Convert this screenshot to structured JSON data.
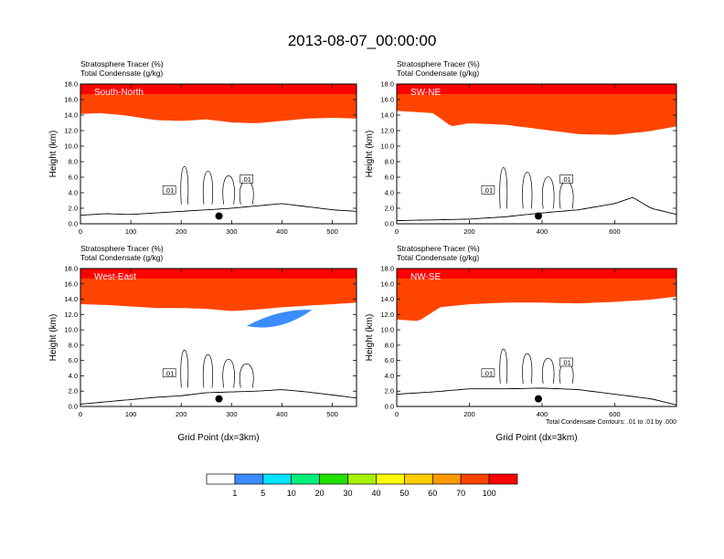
{
  "title": "2013-08-07_00:00:00",
  "chart_data": [
    {
      "type": "heatmap",
      "panel": "South-North",
      "left_strings": [
        "Stratosphere Tracer   (%)",
        "Total Condensate   (g/kg)"
      ],
      "ylabel": "Height (km)",
      "xlabel": "",
      "xlim": [
        0,
        548
      ],
      "ylim": [
        0,
        18
      ],
      "xticks": [
        0,
        100,
        200,
        300,
        400,
        500
      ],
      "yticks": [
        "0.0",
        "2.0",
        "4.0",
        "6.0",
        "8.0",
        "10.0",
        "12.0",
        "14.0",
        "16.0",
        "18.0"
      ],
      "contour_labels": [
        ".01",
        ".01"
      ],
      "marker_x": 275,
      "tropopause": [
        [
          0,
          14.2
        ],
        [
          40,
          14.3
        ],
        [
          90,
          14.0
        ],
        [
          150,
          13.4
        ],
        [
          200,
          13.3
        ],
        [
          250,
          13.5
        ],
        [
          300,
          13.1
        ],
        [
          350,
          13.0
        ],
        [
          400,
          13.3
        ],
        [
          450,
          13.6
        ],
        [
          500,
          13.7
        ],
        [
          548,
          13.6
        ]
      ],
      "terrain": [
        [
          0,
          1.1
        ],
        [
          50,
          1.3
        ],
        [
          100,
          1.2
        ],
        [
          150,
          1.4
        ],
        [
          200,
          1.6
        ],
        [
          250,
          1.8
        ],
        [
          300,
          2.0
        ],
        [
          350,
          2.3
        ],
        [
          400,
          2.6
        ],
        [
          450,
          2.2
        ],
        [
          500,
          1.8
        ],
        [
          548,
          1.6
        ]
      ],
      "blob": null
    },
    {
      "type": "heatmap",
      "panel": "SW-NE",
      "left_strings": [
        "Stratosphere Tracer   (%)",
        "Total Condensate   (g/kg)"
      ],
      "ylabel": "Height (km)",
      "xlabel": "",
      "xlim": [
        0,
        770
      ],
      "ylim": [
        0,
        18
      ],
      "xticks": [
        0,
        200,
        400,
        600
      ],
      "yticks": [
        "0.0",
        "2.0",
        "4.0",
        "6.0",
        "8.0",
        "10.0",
        "12.0",
        "14.0",
        "16.0",
        "18.0"
      ],
      "contour_labels": [
        ".01",
        ".01"
      ],
      "marker_x": 390,
      "tropopause": [
        [
          0,
          14.6
        ],
        [
          100,
          14.3
        ],
        [
          150,
          12.6
        ],
        [
          200,
          13.0
        ],
        [
          300,
          12.8
        ],
        [
          400,
          12.2
        ],
        [
          500,
          11.6
        ],
        [
          600,
          11.5
        ],
        [
          700,
          12.0
        ],
        [
          770,
          12.6
        ]
      ],
      "terrain": [
        [
          0,
          0.4
        ],
        [
          100,
          0.5
        ],
        [
          200,
          0.6
        ],
        [
          300,
          0.9
        ],
        [
          400,
          1.4
        ],
        [
          500,
          1.8
        ],
        [
          600,
          2.6
        ],
        [
          650,
          3.4
        ],
        [
          700,
          2.0
        ],
        [
          770,
          1.2
        ]
      ],
      "blob": null
    },
    {
      "type": "heatmap",
      "panel": "West-East",
      "left_strings": [
        "Stratosphere Tracer   (%)",
        "Total Condensate   (g/kg)"
      ],
      "ylabel": "Height (km)",
      "xlabel": "Grid Point (dx=3km)",
      "xlim": [
        0,
        548
      ],
      "ylim": [
        0,
        18
      ],
      "xticks": [
        0,
        100,
        200,
        300,
        400,
        500
      ],
      "yticks": [
        "0.0",
        "2.0",
        "4.0",
        "6.0",
        "8.0",
        "10.0",
        "12.0",
        "14.0",
        "16.0",
        "18.0"
      ],
      "contour_labels": [
        ".01"
      ],
      "marker_x": 275,
      "tropopause": [
        [
          0,
          13.4
        ],
        [
          50,
          13.3
        ],
        [
          100,
          13.1
        ],
        [
          150,
          12.9
        ],
        [
          200,
          12.9
        ],
        [
          250,
          12.8
        ],
        [
          300,
          12.5
        ],
        [
          350,
          12.7
        ],
        [
          400,
          13.0
        ],
        [
          450,
          13.2
        ],
        [
          500,
          13.4
        ],
        [
          548,
          13.6
        ]
      ],
      "terrain": [
        [
          0,
          0.3
        ],
        [
          50,
          0.6
        ],
        [
          100,
          0.9
        ],
        [
          150,
          1.2
        ],
        [
          200,
          1.4
        ],
        [
          250,
          1.8
        ],
        [
          300,
          1.9
        ],
        [
          350,
          2.0
        ],
        [
          400,
          2.2
        ],
        [
          450,
          1.9
        ],
        [
          500,
          1.5
        ],
        [
          548,
          1.1
        ]
      ],
      "blob": {
        "x0": 330,
        "x1": 460,
        "y0": 10.0,
        "y1": 12.6
      }
    },
    {
      "type": "heatmap",
      "panel": "NW-SE",
      "left_strings": [
        "Stratosphere Tracer   (%)",
        "Total Condensate   (g/kg)"
      ],
      "ylabel": "Height (km)",
      "xlabel": "Grid Point (dx=3km)",
      "xlim": [
        0,
        770
      ],
      "ylim": [
        0,
        18
      ],
      "xticks": [
        0,
        200,
        400,
        600
      ],
      "yticks": [
        "0.0",
        "2.0",
        "4.0",
        "6.0",
        "8.0",
        "10.0",
        "12.0",
        "14.0",
        "16.0",
        "18.0"
      ],
      "contour_labels": [
        ".01",
        ".01"
      ],
      "marker_x": 390,
      "tropopause": [
        [
          0,
          11.4
        ],
        [
          60,
          11.2
        ],
        [
          120,
          13.0
        ],
        [
          200,
          13.4
        ],
        [
          300,
          13.6
        ],
        [
          400,
          13.6
        ],
        [
          500,
          13.5
        ],
        [
          600,
          13.7
        ],
        [
          700,
          14.0
        ],
        [
          770,
          14.4
        ]
      ],
      "terrain": [
        [
          0,
          1.6
        ],
        [
          100,
          1.9
        ],
        [
          200,
          2.3
        ],
        [
          300,
          2.3
        ],
        [
          400,
          2.4
        ],
        [
          500,
          2.2
        ],
        [
          600,
          1.6
        ],
        [
          700,
          1.0
        ],
        [
          770,
          0.2
        ]
      ],
      "blob": null,
      "note": "Total Condensate Contours: .01 to .01 by .000"
    }
  ],
  "colorbar": {
    "labels": [
      "1",
      "5",
      "10",
      "20",
      "30",
      "40",
      "50",
      "60",
      "70",
      "100"
    ],
    "colors": [
      "#ffffff",
      "#3a8cff",
      "#00e5ff",
      "#00f07a",
      "#22e000",
      "#a8f200",
      "#ffff00",
      "#ffcc00",
      "#ff9900",
      "#ff4400",
      "#ff0000"
    ]
  }
}
